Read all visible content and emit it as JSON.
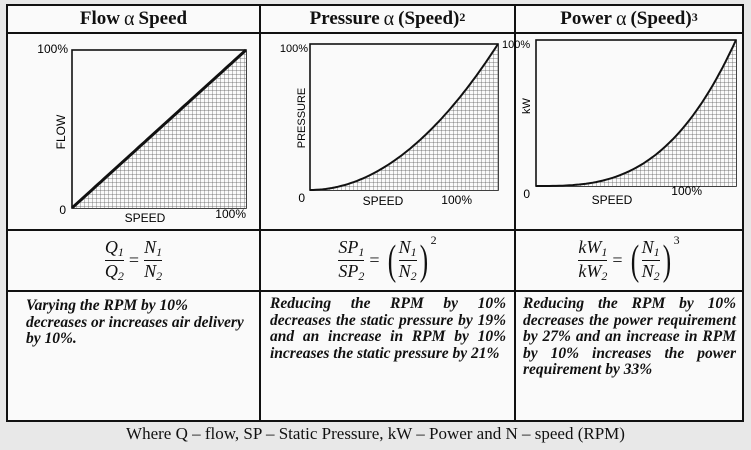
{
  "headers": {
    "flow": {
      "name": "Flow",
      "symbol": "α",
      "rhs": "Speed",
      "power": ""
    },
    "pressure": {
      "name": "Pressure",
      "symbol": "α",
      "rhs": "(Speed)",
      "power": "2"
    },
    "power": {
      "name": "Power",
      "symbol": "α",
      "rhs": "(Speed)",
      "power": "3"
    }
  },
  "charts": {
    "flow": {
      "y_label": "FLOW",
      "x_label": "SPEED",
      "y_max": "100%",
      "x_max": "100%",
      "origin": "0",
      "exponent": 1
    },
    "pressure": {
      "y_label": "PRESSURE",
      "x_label": "SPEED",
      "y_max": "100%",
      "x_max": "100%",
      "origin": "0",
      "exponent": 2
    },
    "power": {
      "y_label": "kW",
      "x_label": "SPEED",
      "y_max": "100%",
      "x_max": "100%",
      "origin": "0",
      "exponent": 3
    }
  },
  "formulas": {
    "flow": {
      "num_left": "Q",
      "num_left_sub": "1",
      "den_left": "Q",
      "den_left_sub": "2",
      "num_right": "N",
      "num_right_sub": "1",
      "den_right": "N",
      "den_right_sub": "2",
      "power": ""
    },
    "pressure": {
      "num_left": "SP",
      "num_left_sub": "1",
      "den_left": "SP",
      "den_left_sub": "2",
      "num_right": "N",
      "num_right_sub": "1",
      "den_right": "N",
      "den_right_sub": "2",
      "power": "2"
    },
    "power": {
      "num_left": "kW",
      "num_left_sub": "1",
      "den_left": "kW",
      "den_left_sub": "2",
      "num_right": "N",
      "num_right_sub": "1",
      "den_right": "N",
      "den_right_sub": "2",
      "power": "3"
    }
  },
  "notes": {
    "flow": "Varying the RPM by 10% decreases or increases air delivery by 10%.",
    "pressure": "Reducing the RPM by 10% decreases the static pressure by 19% and an increase in RPM by 10% increases the static pressure by 21%",
    "power": "Reducing the RPM by 10% decreases the power requirement by 27% and an increase in RPM by 10% increases the power requirement by 33%"
  },
  "footer": "Where Q – flow, SP – Static Pressure, kW – Power and N – speed (RPM)",
  "colors": {
    "line": "#111111",
    "hatch": "#444444",
    "background": "#fafafa",
    "page": "#e8e8e8"
  }
}
